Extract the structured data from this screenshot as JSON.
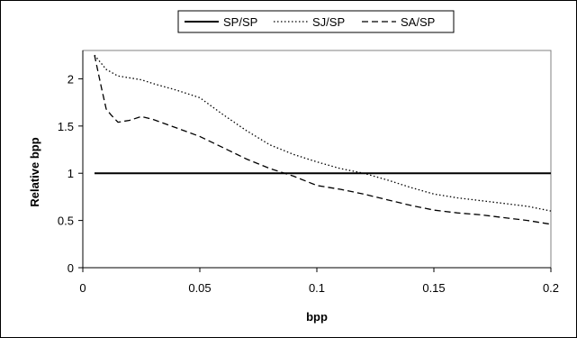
{
  "chart_data": {
    "type": "line",
    "title": "",
    "xlabel": "bpp",
    "ylabel": "Relative bpp",
    "xlim": [
      0,
      0.2
    ],
    "ylim": [
      0,
      2.3
    ],
    "x_ticks": [
      0,
      0.05,
      0.1,
      0.15,
      0.2
    ],
    "x_tick_labels": [
      "0",
      "0.05",
      "0.1",
      "0.15",
      "0.2"
    ],
    "y_ticks": [
      0,
      0.5,
      1,
      1.5,
      2
    ],
    "y_tick_labels": [
      "0",
      "0.5",
      "1",
      "1.5",
      "2"
    ],
    "grid": false,
    "legend_position": "top-center",
    "series": [
      {
        "name": "SP/SP",
        "style": "solid",
        "color": "#000000",
        "points": [
          [
            0.005,
            1.0
          ],
          [
            0.2,
            1.0
          ]
        ]
      },
      {
        "name": "SJ/SP",
        "style": "dotted",
        "color": "#000000",
        "points": [
          [
            0.005,
            2.25
          ],
          [
            0.01,
            2.1
          ],
          [
            0.015,
            2.03
          ],
          [
            0.02,
            2.01
          ],
          [
            0.025,
            1.99
          ],
          [
            0.03,
            1.95
          ],
          [
            0.04,
            1.88
          ],
          [
            0.05,
            1.8
          ],
          [
            0.06,
            1.62
          ],
          [
            0.07,
            1.45
          ],
          [
            0.08,
            1.3
          ],
          [
            0.09,
            1.2
          ],
          [
            0.1,
            1.12
          ],
          [
            0.11,
            1.05
          ],
          [
            0.12,
            1.0
          ],
          [
            0.13,
            0.93
          ],
          [
            0.14,
            0.85
          ],
          [
            0.15,
            0.78
          ],
          [
            0.16,
            0.74
          ],
          [
            0.17,
            0.71
          ],
          [
            0.18,
            0.68
          ],
          [
            0.19,
            0.65
          ],
          [
            0.2,
            0.6
          ]
        ]
      },
      {
        "name": "SA/SP",
        "style": "dashed",
        "color": "#000000",
        "points": [
          [
            0.005,
            2.25
          ],
          [
            0.008,
            1.9
          ],
          [
            0.01,
            1.68
          ],
          [
            0.012,
            1.62
          ],
          [
            0.015,
            1.54
          ],
          [
            0.02,
            1.56
          ],
          [
            0.025,
            1.6
          ],
          [
            0.03,
            1.57
          ],
          [
            0.04,
            1.48
          ],
          [
            0.05,
            1.39
          ],
          [
            0.06,
            1.27
          ],
          [
            0.07,
            1.15
          ],
          [
            0.08,
            1.05
          ],
          [
            0.09,
            0.97
          ],
          [
            0.1,
            0.87
          ],
          [
            0.11,
            0.83
          ],
          [
            0.12,
            0.78
          ],
          [
            0.13,
            0.72
          ],
          [
            0.14,
            0.66
          ],
          [
            0.15,
            0.61
          ],
          [
            0.16,
            0.58
          ],
          [
            0.17,
            0.56
          ],
          [
            0.18,
            0.53
          ],
          [
            0.19,
            0.5
          ],
          [
            0.2,
            0.46
          ]
        ]
      }
    ]
  }
}
